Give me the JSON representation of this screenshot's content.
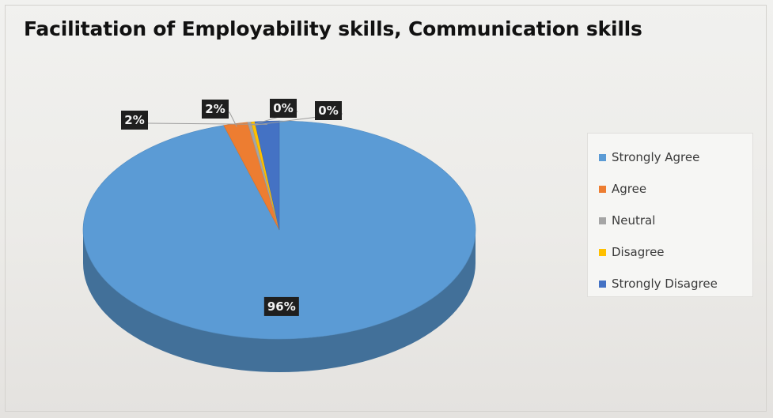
{
  "chart_data": {
    "type": "pie",
    "title": "Facilitation of Employability skills, Communication skills",
    "categories": [
      "Strongly Agree",
      "Agree",
      "Neutral",
      "Disagree",
      "Strongly Disagree"
    ],
    "values": [
      96,
      2,
      0,
      0,
      2
    ],
    "data_labels": [
      "96%",
      "2%",
      "0%",
      "0%",
      "2%"
    ],
    "colors": [
      "#5b9bd5",
      "#ed7d31",
      "#a5a5a5",
      "#ffc000",
      "#4472c4"
    ],
    "legend_position": "right",
    "style": "3d"
  }
}
